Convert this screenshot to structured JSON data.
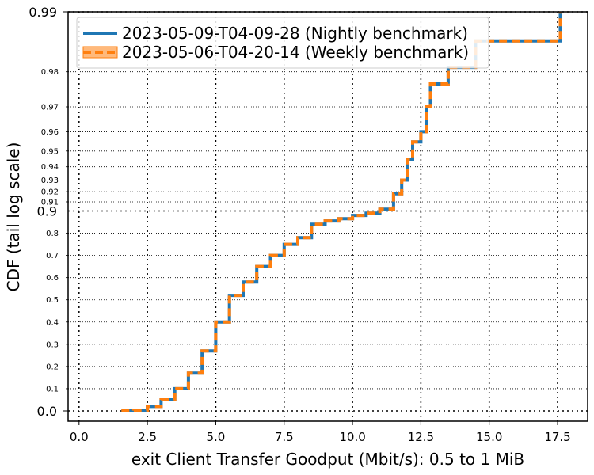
{
  "chart_data": {
    "type": "line",
    "xlabel": "exit Client Transfer Goodput (Mbit/s): 0.5 to 1 MiB",
    "ylabel": "CDF (tail log scale)",
    "xlim": [
      -0.4,
      18.6
    ],
    "xticks": [
      {
        "value": 0,
        "label": "0.0"
      },
      {
        "value": 2.5,
        "label": "2.5"
      },
      {
        "value": 5,
        "label": "5.0"
      },
      {
        "value": 7.5,
        "label": "7.5"
      },
      {
        "value": 10,
        "label": "10.0"
      },
      {
        "value": 12.5,
        "label": "12.5"
      },
      {
        "value": 15,
        "label": "15.0"
      },
      {
        "value": 17.5,
        "label": "17.5"
      }
    ],
    "yticks_major": [
      {
        "value": 0.0,
        "label": "0.0"
      },
      {
        "value": 0.9,
        "label": "0.9"
      },
      {
        "value": 0.99,
        "label": "0.99"
      }
    ],
    "yticks_minor": [
      {
        "value": 0.1,
        "label": "0.1"
      },
      {
        "value": 0.2,
        "label": "0.2"
      },
      {
        "value": 0.3,
        "label": "0.3"
      },
      {
        "value": 0.4,
        "label": "0.4"
      },
      {
        "value": 0.5,
        "label": "0.5"
      },
      {
        "value": 0.6,
        "label": "0.6"
      },
      {
        "value": 0.7,
        "label": "0.7"
      },
      {
        "value": 0.8,
        "label": "0.8"
      },
      {
        "value": 0.91,
        "label": "0.91"
      },
      {
        "value": 0.92,
        "label": "0.92"
      },
      {
        "value": 0.93,
        "label": "0.93"
      },
      {
        "value": 0.94,
        "label": "0.94"
      },
      {
        "value": 0.95,
        "label": "0.95"
      },
      {
        "value": 0.96,
        "label": "0.96"
      },
      {
        "value": 0.97,
        "label": "0.97"
      },
      {
        "value": 0.98,
        "label": "0.98"
      }
    ],
    "grid": true,
    "legend_position": "top-left",
    "series": [
      {
        "name": "2023-05-09-T04-09-28 (Nightly benchmark)",
        "color": "#1f77b4",
        "style": "solid",
        "x": [
          1.55,
          2.0,
          2.5,
          3.0,
          3.5,
          4.0,
          4.5,
          5.0,
          5.5,
          6.0,
          6.5,
          7.0,
          7.5,
          8.0,
          8.5,
          9.0,
          9.5,
          10.0,
          10.5,
          11.0,
          11.5,
          11.8,
          12.0,
          12.2,
          12.5,
          12.7,
          12.85,
          13.5,
          14.5,
          17.6,
          17.6
        ],
        "y": [
          0.0,
          0.002,
          0.02,
          0.05,
          0.1,
          0.17,
          0.27,
          0.4,
          0.52,
          0.58,
          0.65,
          0.7,
          0.75,
          0.78,
          0.84,
          0.855,
          0.865,
          0.88,
          0.89,
          0.902,
          0.918,
          0.93,
          0.945,
          0.955,
          0.96,
          0.97,
          0.977,
          0.981,
          0.986,
          0.986,
          0.99
        ]
      },
      {
        "name": "2023-05-06-T04-20-14 (Weekly benchmark)",
        "color": "#ff7f0e",
        "style": "dashed",
        "x": [
          1.55,
          2.0,
          2.5,
          3.0,
          3.5,
          4.0,
          4.5,
          5.0,
          5.5,
          6.0,
          6.5,
          7.0,
          7.5,
          8.0,
          8.5,
          9.0,
          9.5,
          10.0,
          10.5,
          11.0,
          11.5,
          11.8,
          12.0,
          12.2,
          12.5,
          12.7,
          12.85,
          13.5,
          14.5,
          17.6,
          17.6
        ],
        "y": [
          0.0,
          0.002,
          0.02,
          0.05,
          0.1,
          0.17,
          0.27,
          0.4,
          0.52,
          0.58,
          0.65,
          0.7,
          0.75,
          0.78,
          0.84,
          0.855,
          0.865,
          0.88,
          0.89,
          0.902,
          0.918,
          0.93,
          0.945,
          0.955,
          0.96,
          0.97,
          0.977,
          0.981,
          0.986,
          0.986,
          0.99
        ]
      }
    ]
  }
}
